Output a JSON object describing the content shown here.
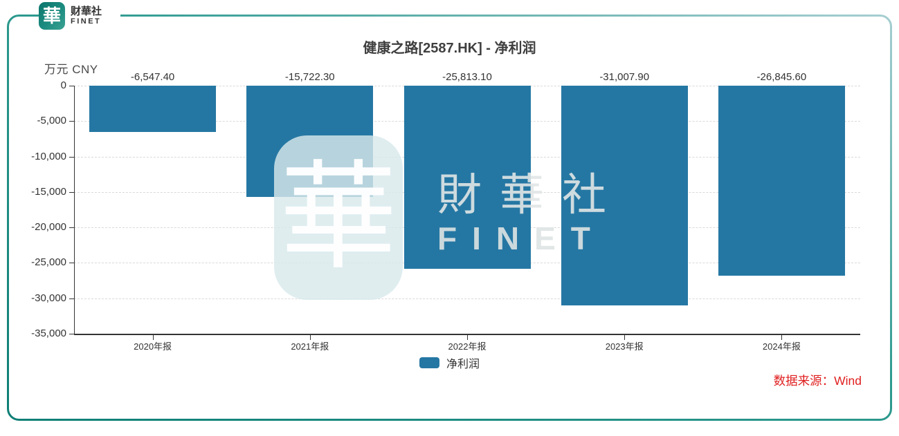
{
  "brand": {
    "logo_glyph": "華",
    "name_cn": "财華社",
    "name_en": "FINET"
  },
  "header": {
    "title": "健康之路[2587.HK] - 净利润"
  },
  "axis_unit": "万元 CNY",
  "legend": {
    "label": "净利润",
    "swatch_color": "#2577a3"
  },
  "source_note": "数据来源：Wind",
  "watermark": {
    "glyph": "華",
    "text_cn": "財華社",
    "text_en": "FINET"
  },
  "colors": {
    "bar": "#2577a3",
    "axis": "#333333",
    "grid_dashed": "#d9d9d9",
    "source_text": "#e02020",
    "frame_dark": "#0e7f75",
    "frame_mid": "#2f9b90",
    "frame_light": "#a6ced1",
    "logo_teal": "#17847b",
    "title_text": "#3f3f3f"
  },
  "chart_data": {
    "type": "bar",
    "title": "健康之路[2587.HK] - 净利润",
    "unit": "万元 CNY",
    "categories": [
      "2020年报",
      "2021年报",
      "2022年报",
      "2023年报",
      "2024年报"
    ],
    "series": [
      {
        "name": "净利润",
        "values": [
          -6547.4,
          -15722.3,
          -25813.1,
          -31007.9,
          -26845.6
        ]
      }
    ],
    "value_labels": [
      "-6,547.40",
      "-15,722.30",
      "-25,813.10",
      "-31,007.90",
      "-26,845.60"
    ],
    "ylim": [
      -35000,
      0
    ],
    "ytick_step": 5000,
    "ytick_labels": [
      "0",
      "-5,000",
      "-10,000",
      "-15,000",
      "-20,000",
      "-25,000",
      "-30,000",
      "-35,000"
    ],
    "grid": "horizontal-dashed",
    "legend_position": "bottom-center"
  }
}
